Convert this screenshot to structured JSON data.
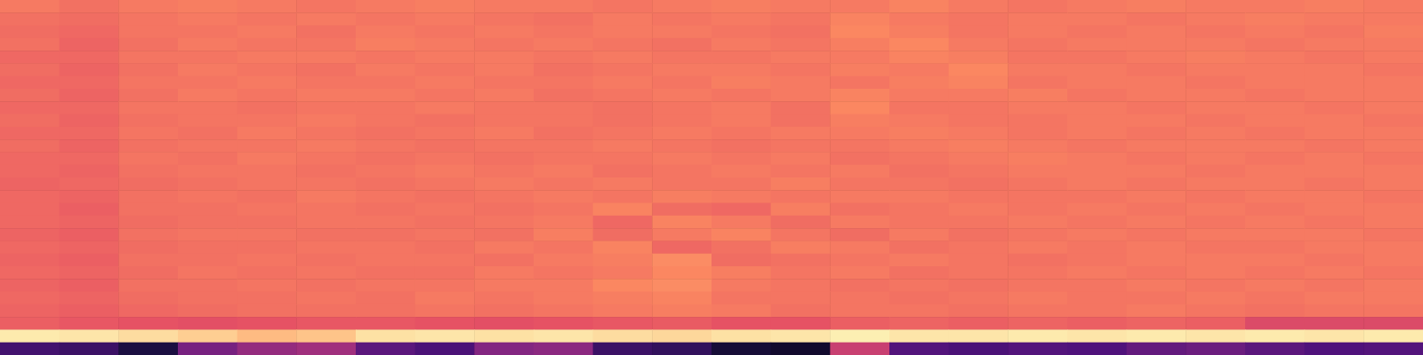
{
  "chart_data": {
    "type": "heatmap",
    "color": "magma",
    "tick_labels": false,
    "zlim": [
      0,
      100
    ],
    "values": [
      [
        72,
        70,
        72,
        73,
        72,
        71,
        72,
        73,
        72,
        72,
        71,
        72,
        73,
        72,
        72,
        74,
        72,
        71,
        72,
        73,
        72,
        72,
        73,
        72
      ],
      [
        70,
        69,
        71,
        72,
        71,
        72,
        71,
        72,
        71,
        70,
        72,
        71,
        72,
        71,
        74,
        72,
        71,
        72,
        72,
        71,
        72,
        73,
        72,
        72
      ],
      [
        69,
        68,
        71,
        71,
        72,
        70,
        72,
        71,
        72,
        71,
        72,
        72,
        71,
        70,
        75,
        73,
        71,
        72,
        71,
        72,
        71,
        72,
        71,
        73
      ],
      [
        70,
        67,
        70,
        72,
        71,
        71,
        73,
        72,
        71,
        72,
        71,
        70,
        72,
        71,
        73,
        75,
        72,
        71,
        72,
        72,
        72,
        71,
        72,
        72
      ],
      [
        68,
        68,
        71,
        71,
        72,
        72,
        71,
        72,
        72,
        71,
        72,
        71,
        71,
        72,
        72,
        74,
        73,
        71,
        71,
        72,
        73,
        72,
        71,
        72
      ],
      [
        69,
        67,
        70,
        72,
        71,
        70,
        72,
        71,
        72,
        70,
        71,
        72,
        72,
        71,
        73,
        72,
        75,
        72,
        72,
        71,
        72,
        72,
        72,
        71
      ],
      [
        68,
        68,
        71,
        71,
        72,
        71,
        71,
        72,
        71,
        71,
        72,
        71,
        73,
        72,
        71,
        73,
        74,
        71,
        72,
        72,
        71,
        72,
        72,
        72
      ],
      [
        69,
        67,
        70,
        72,
        71,
        72,
        72,
        71,
        72,
        70,
        71,
        72,
        71,
        72,
        74,
        72,
        72,
        73,
        71,
        72,
        72,
        71,
        72,
        72
      ],
      [
        68,
        68,
        71,
        71,
        70,
        71,
        71,
        72,
        71,
        71,
        70,
        71,
        72,
        70,
        75,
        71,
        71,
        72,
        72,
        71,
        72,
        72,
        71,
        72
      ],
      [
        69,
        67,
        70,
        71,
        71,
        72,
        71,
        70,
        71,
        71,
        70,
        71,
        72,
        70,
        73,
        72,
        71,
        71,
        72,
        72,
        71,
        72,
        72,
        71
      ],
      [
        68,
        68,
        71,
        70,
        72,
        71,
        70,
        71,
        72,
        70,
        71,
        72,
        71,
        72,
        72,
        73,
        72,
        71,
        72,
        71,
        72,
        71,
        72,
        72
      ],
      [
        69,
        67,
        70,
        71,
        71,
        72,
        71,
        70,
        71,
        71,
        72,
        71,
        70,
        71,
        71,
        72,
        73,
        72,
        71,
        72,
        72,
        72,
        71,
        72
      ],
      [
        68,
        68,
        71,
        70,
        72,
        71,
        70,
        71,
        70,
        71,
        71,
        72,
        71,
        72,
        70,
        71,
        72,
        73,
        72,
        71,
        72,
        71,
        72,
        71
      ],
      [
        68,
        67,
        70,
        71,
        71,
        70,
        71,
        72,
        71,
        72,
        70,
        71,
        72,
        71,
        72,
        70,
        71,
        72,
        72,
        72,
        71,
        72,
        72,
        72
      ],
      [
        67,
        68,
        69,
        70,
        71,
        71,
        70,
        71,
        72,
        71,
        72,
        71,
        71,
        73,
        71,
        71,
        70,
        71,
        72,
        71,
        72,
        72,
        71,
        72
      ],
      [
        68,
        67,
        70,
        71,
        70,
        72,
        71,
        70,
        71,
        72,
        71,
        73,
        72,
        71,
        72,
        72,
        71,
        71,
        71,
        72,
        71,
        72,
        72,
        71
      ],
      [
        68,
        66,
        70,
        70,
        71,
        71,
        70,
        71,
        70,
        71,
        74,
        69,
        68,
        73,
        70,
        71,
        72,
        71,
        72,
        71,
        72,
        71,
        72,
        72
      ],
      [
        68,
        67,
        69,
        70,
        70,
        71,
        71,
        70,
        71,
        72,
        68,
        74,
        72,
        69,
        72,
        71,
        71,
        72,
        71,
        72,
        71,
        72,
        71,
        72
      ],
      [
        67,
        66,
        70,
        71,
        71,
        70,
        70,
        71,
        70,
        73,
        69,
        72,
        74,
        71,
        69,
        72,
        70,
        71,
        72,
        71,
        72,
        72,
        72,
        71
      ],
      [
        68,
        67,
        69,
        70,
        70,
        71,
        71,
        70,
        72,
        71,
        74,
        68,
        70,
        73,
        72,
        70,
        71,
        72,
        71,
        72,
        71,
        71,
        72,
        72
      ],
      [
        67,
        66,
        70,
        70,
        71,
        70,
        71,
        71,
        70,
        72,
        73,
        76,
        69,
        70,
        71,
        72,
        71,
        70,
        71,
        72,
        72,
        72,
        71,
        72
      ],
      [
        68,
        67,
        69,
        71,
        70,
        71,
        70,
        70,
        72,
        71,
        72,
        75,
        73,
        71,
        72,
        70,
        71,
        71,
        72,
        71,
        72,
        71,
        72,
        71
      ],
      [
        67,
        66,
        70,
        70,
        71,
        70,
        71,
        71,
        72,
        72,
        75,
        76,
        72,
        71,
        70,
        71,
        70,
        71,
        71,
        72,
        71,
        72,
        71,
        72
      ],
      [
        68,
        67,
        69,
        70,
        70,
        71,
        70,
        72,
        71,
        72,
        73,
        74,
        71,
        71,
        71,
        70,
        71,
        72,
        71,
        71,
        72,
        71,
        72,
        72
      ],
      [
        67,
        66,
        68,
        69,
        70,
        70,
        70,
        71,
        70,
        71,
        72,
        73,
        72,
        70,
        71,
        71,
        70,
        71,
        71,
        72,
        71,
        70,
        71,
        71
      ],
      [
        66,
        64,
        63,
        62,
        63,
        64,
        64,
        63,
        62,
        63,
        64,
        65,
        63,
        63,
        66,
        67,
        66,
        67,
        66,
        67,
        66,
        60,
        60,
        60
      ],
      [
        96,
        95,
        93,
        90,
        86,
        88,
        94,
        95,
        94,
        95,
        93,
        92,
        94,
        95,
        97,
        95,
        95,
        96,
        95,
        96,
        95,
        96,
        95,
        96
      ],
      [
        22,
        20,
        12,
        35,
        42,
        45,
        28,
        24,
        38,
        40,
        20,
        18,
        10,
        8,
        55,
        26,
        24,
        26,
        25,
        30,
        32,
        28,
        25,
        26
      ]
    ]
  }
}
